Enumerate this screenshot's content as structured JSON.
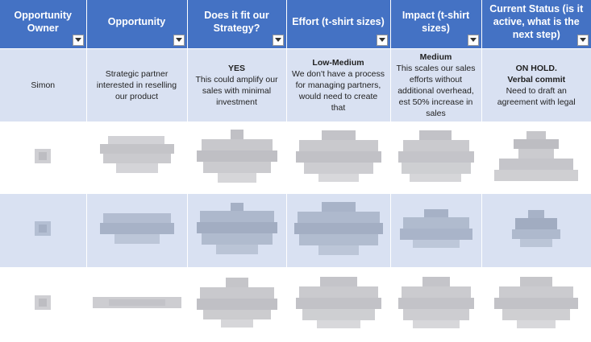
{
  "headers": [
    {
      "label": "Opportunity Owner"
    },
    {
      "label": "Opportunity"
    },
    {
      "label": "Does it fit our Strategy?"
    },
    {
      "label": "Effort (t-shirt sizes)"
    },
    {
      "label": "Impact (t-shirt sizes)"
    },
    {
      "label": "Current Status (is it active, what is the next step)"
    }
  ],
  "rows": [
    {
      "owner": "Simon",
      "opportunity": "Strategic partner interested in reselling our product",
      "strategy_fit": {
        "verdict": "YES",
        "detail": "This could amplify our sales with minimal investment"
      },
      "effort": {
        "verdict": "Low-Medium",
        "detail": "We don't have a process for managing partners, would need to create that"
      },
      "impact": {
        "verdict": "Medium",
        "detail": "This scales our sales efforts without additional overhead, est 50% increase in sales"
      },
      "status": {
        "verdict": "ON HOLD.",
        "verdict2": "Verbal commit",
        "detail": "Need to draft an agreement with legal"
      }
    }
  ],
  "colors": {
    "header_bg": "#4472c4",
    "header_text": "#ffffff",
    "band_blue": "#d9e1f2",
    "band_white": "#ffffff",
    "redaction_gray": "#c9c9cc"
  }
}
